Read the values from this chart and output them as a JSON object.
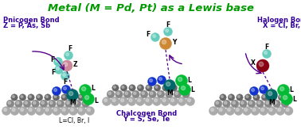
{
  "title": "Metal (M = Pd, Pt) as a Lewis base",
  "title_color": "#009900",
  "title_fontsize": 9.5,
  "bg_color": "#ffffff",
  "left_label1": "Pnicogen Bond",
  "left_label2": "Z = P, As, Sb",
  "left_label_color": "#330099",
  "label_fontsize": 6.0,
  "mid_label1": "Chalcogen Bond",
  "mid_label2": "Y = S, Se, Te",
  "mid_label_color": "#330099",
  "right_label1": "Halogen Bond",
  "right_label2": "X = Cl, Br, I",
  "right_label_color": "#330099",
  "bottom_label": "L=Cl, Br, I",
  "gray1": "#aaaaaa",
  "gray2": "#888888",
  "gray3": "#666666",
  "blue_color": "#1133cc",
  "teal_color": "#006666",
  "green_color": "#00bb33",
  "pink_color": "#cc8899",
  "gold_color": "#cc8833",
  "dark_red": "#880011",
  "cyan_color": "#66ccbb",
  "purple_color": "#550088",
  "white": "#ffffff"
}
